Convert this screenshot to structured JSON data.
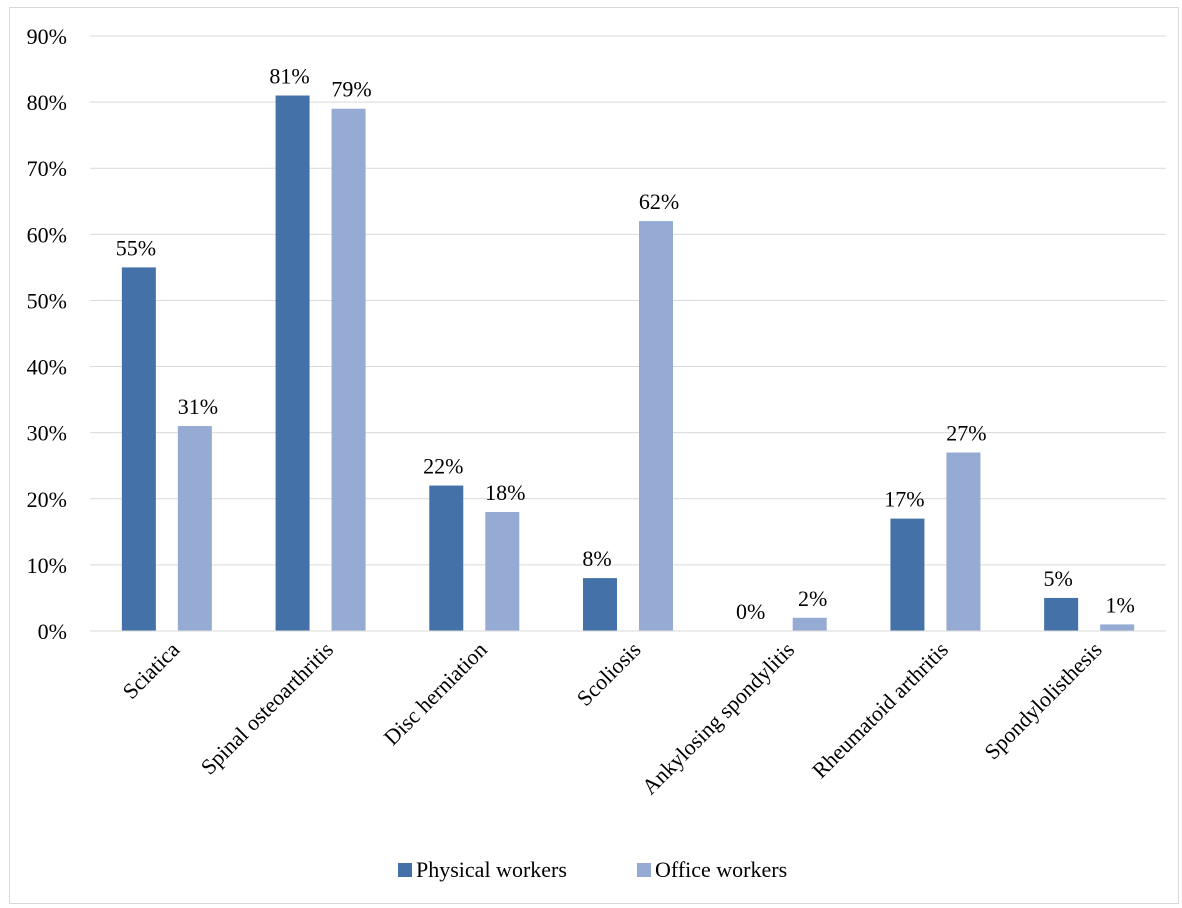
{
  "chart_data": {
    "type": "bar",
    "categories": [
      "Sciatica",
      "Spinal osteoarthritis",
      "Disc herniation",
      "Scoliosis",
      "Ankylosing spondylitis",
      "Rheumatoid arthritis",
      "Spondylolisthesis"
    ],
    "series": [
      {
        "name": "Physical workers",
        "color": "#4472a8",
        "values": [
          55,
          81,
          22,
          8,
          0,
          17,
          5
        ],
        "labels": [
          "55%",
          "81%",
          "22%",
          "8%",
          "0%",
          "17%",
          "5%"
        ]
      },
      {
        "name": "Office workers",
        "color": "#95abd3",
        "values": [
          31,
          79,
          18,
          62,
          2,
          27,
          1
        ],
        "labels": [
          "31%",
          "79%",
          "18%",
          "62%",
          "2%",
          "27%",
          "1%"
        ]
      }
    ],
    "ylim": [
      0,
      90
    ],
    "yticks": [
      0,
      10,
      20,
      30,
      40,
      50,
      60,
      70,
      80,
      90
    ],
    "ytick_labels": [
      "0%",
      "10%",
      "20%",
      "30%",
      "40%",
      "50%",
      "60%",
      "70%",
      "80%",
      "90%"
    ],
    "grid": true,
    "legend": "bottom"
  }
}
